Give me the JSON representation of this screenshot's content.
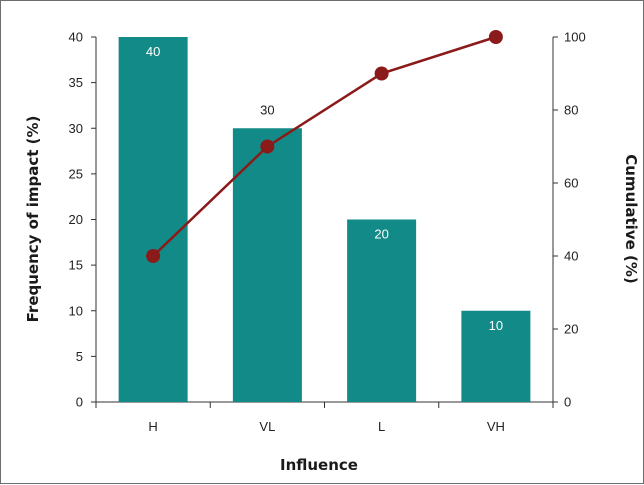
{
  "chart_data": {
    "type": "bar",
    "categories": [
      "H",
      "VL",
      "L",
      "VH"
    ],
    "series": [
      {
        "type": "bar",
        "axis": "left",
        "values": [
          40,
          30,
          20,
          10
        ],
        "color": "#128a87"
      },
      {
        "type": "line",
        "axis": "right",
        "values": [
          40,
          70,
          90,
          100
        ],
        "color": "#8b1a1a"
      }
    ],
    "data_labels": [
      "40",
      "30",
      "20",
      "10"
    ],
    "xlabel": "Influence",
    "ylabel": "Frequency of impact (%)",
    "y2label": "Cumulative (%)",
    "ylim": [
      0,
      40
    ],
    "y2lim": [
      0,
      100
    ],
    "yticks": [
      "0",
      "5",
      "10",
      "15",
      "20",
      "25",
      "30",
      "35",
      "40"
    ],
    "y2ticks": [
      "0",
      "20",
      "40",
      "60",
      "80",
      "100"
    ],
    "grid": false,
    "legend": "none",
    "label_colors": {
      "inside": "#ffffff",
      "above": "#222222"
    },
    "axis_color": "#333333"
  }
}
